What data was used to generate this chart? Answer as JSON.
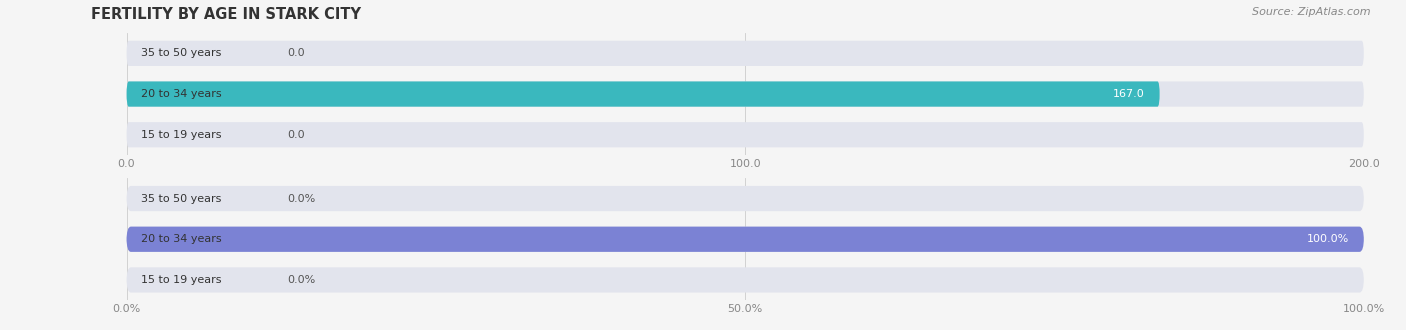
{
  "title": "FERTILITY BY AGE IN STARK CITY",
  "source": "Source: ZipAtlas.com",
  "top_chart": {
    "categories": [
      "15 to 19 years",
      "20 to 34 years",
      "35 to 50 years"
    ],
    "values": [
      0.0,
      167.0,
      0.0
    ],
    "xlim": [
      0,
      200
    ],
    "xticks": [
      0.0,
      100.0,
      200.0
    ],
    "xtick_labels": [
      "0.0",
      "100.0",
      "200.0"
    ],
    "bar_color": "#3ab8be",
    "bar_bg_color": "#e2e4ed",
    "label_color_inside": "#ffffff",
    "label_color_outside": "#555555",
    "value_threshold": 50
  },
  "bottom_chart": {
    "categories": [
      "15 to 19 years",
      "20 to 34 years",
      "35 to 50 years"
    ],
    "values": [
      0.0,
      100.0,
      0.0
    ],
    "xlim": [
      0,
      100
    ],
    "xticks": [
      0.0,
      50.0,
      100.0
    ],
    "xtick_labels": [
      "0.0%",
      "50.0%",
      "100.0%"
    ],
    "bar_color": "#7b82d4",
    "bar_bg_color": "#e2e4ed",
    "label_color_inside": "#ffffff",
    "label_color_outside": "#555555",
    "value_threshold": 30
  },
  "title_fontsize": 10.5,
  "source_fontsize": 8,
  "label_fontsize": 8,
  "tick_fontsize": 8,
  "category_fontsize": 8,
  "bar_height": 0.62,
  "title_color": "#333333",
  "tick_color": "#888888",
  "category_color": "#333333",
  "bg_color": "#f5f5f5"
}
